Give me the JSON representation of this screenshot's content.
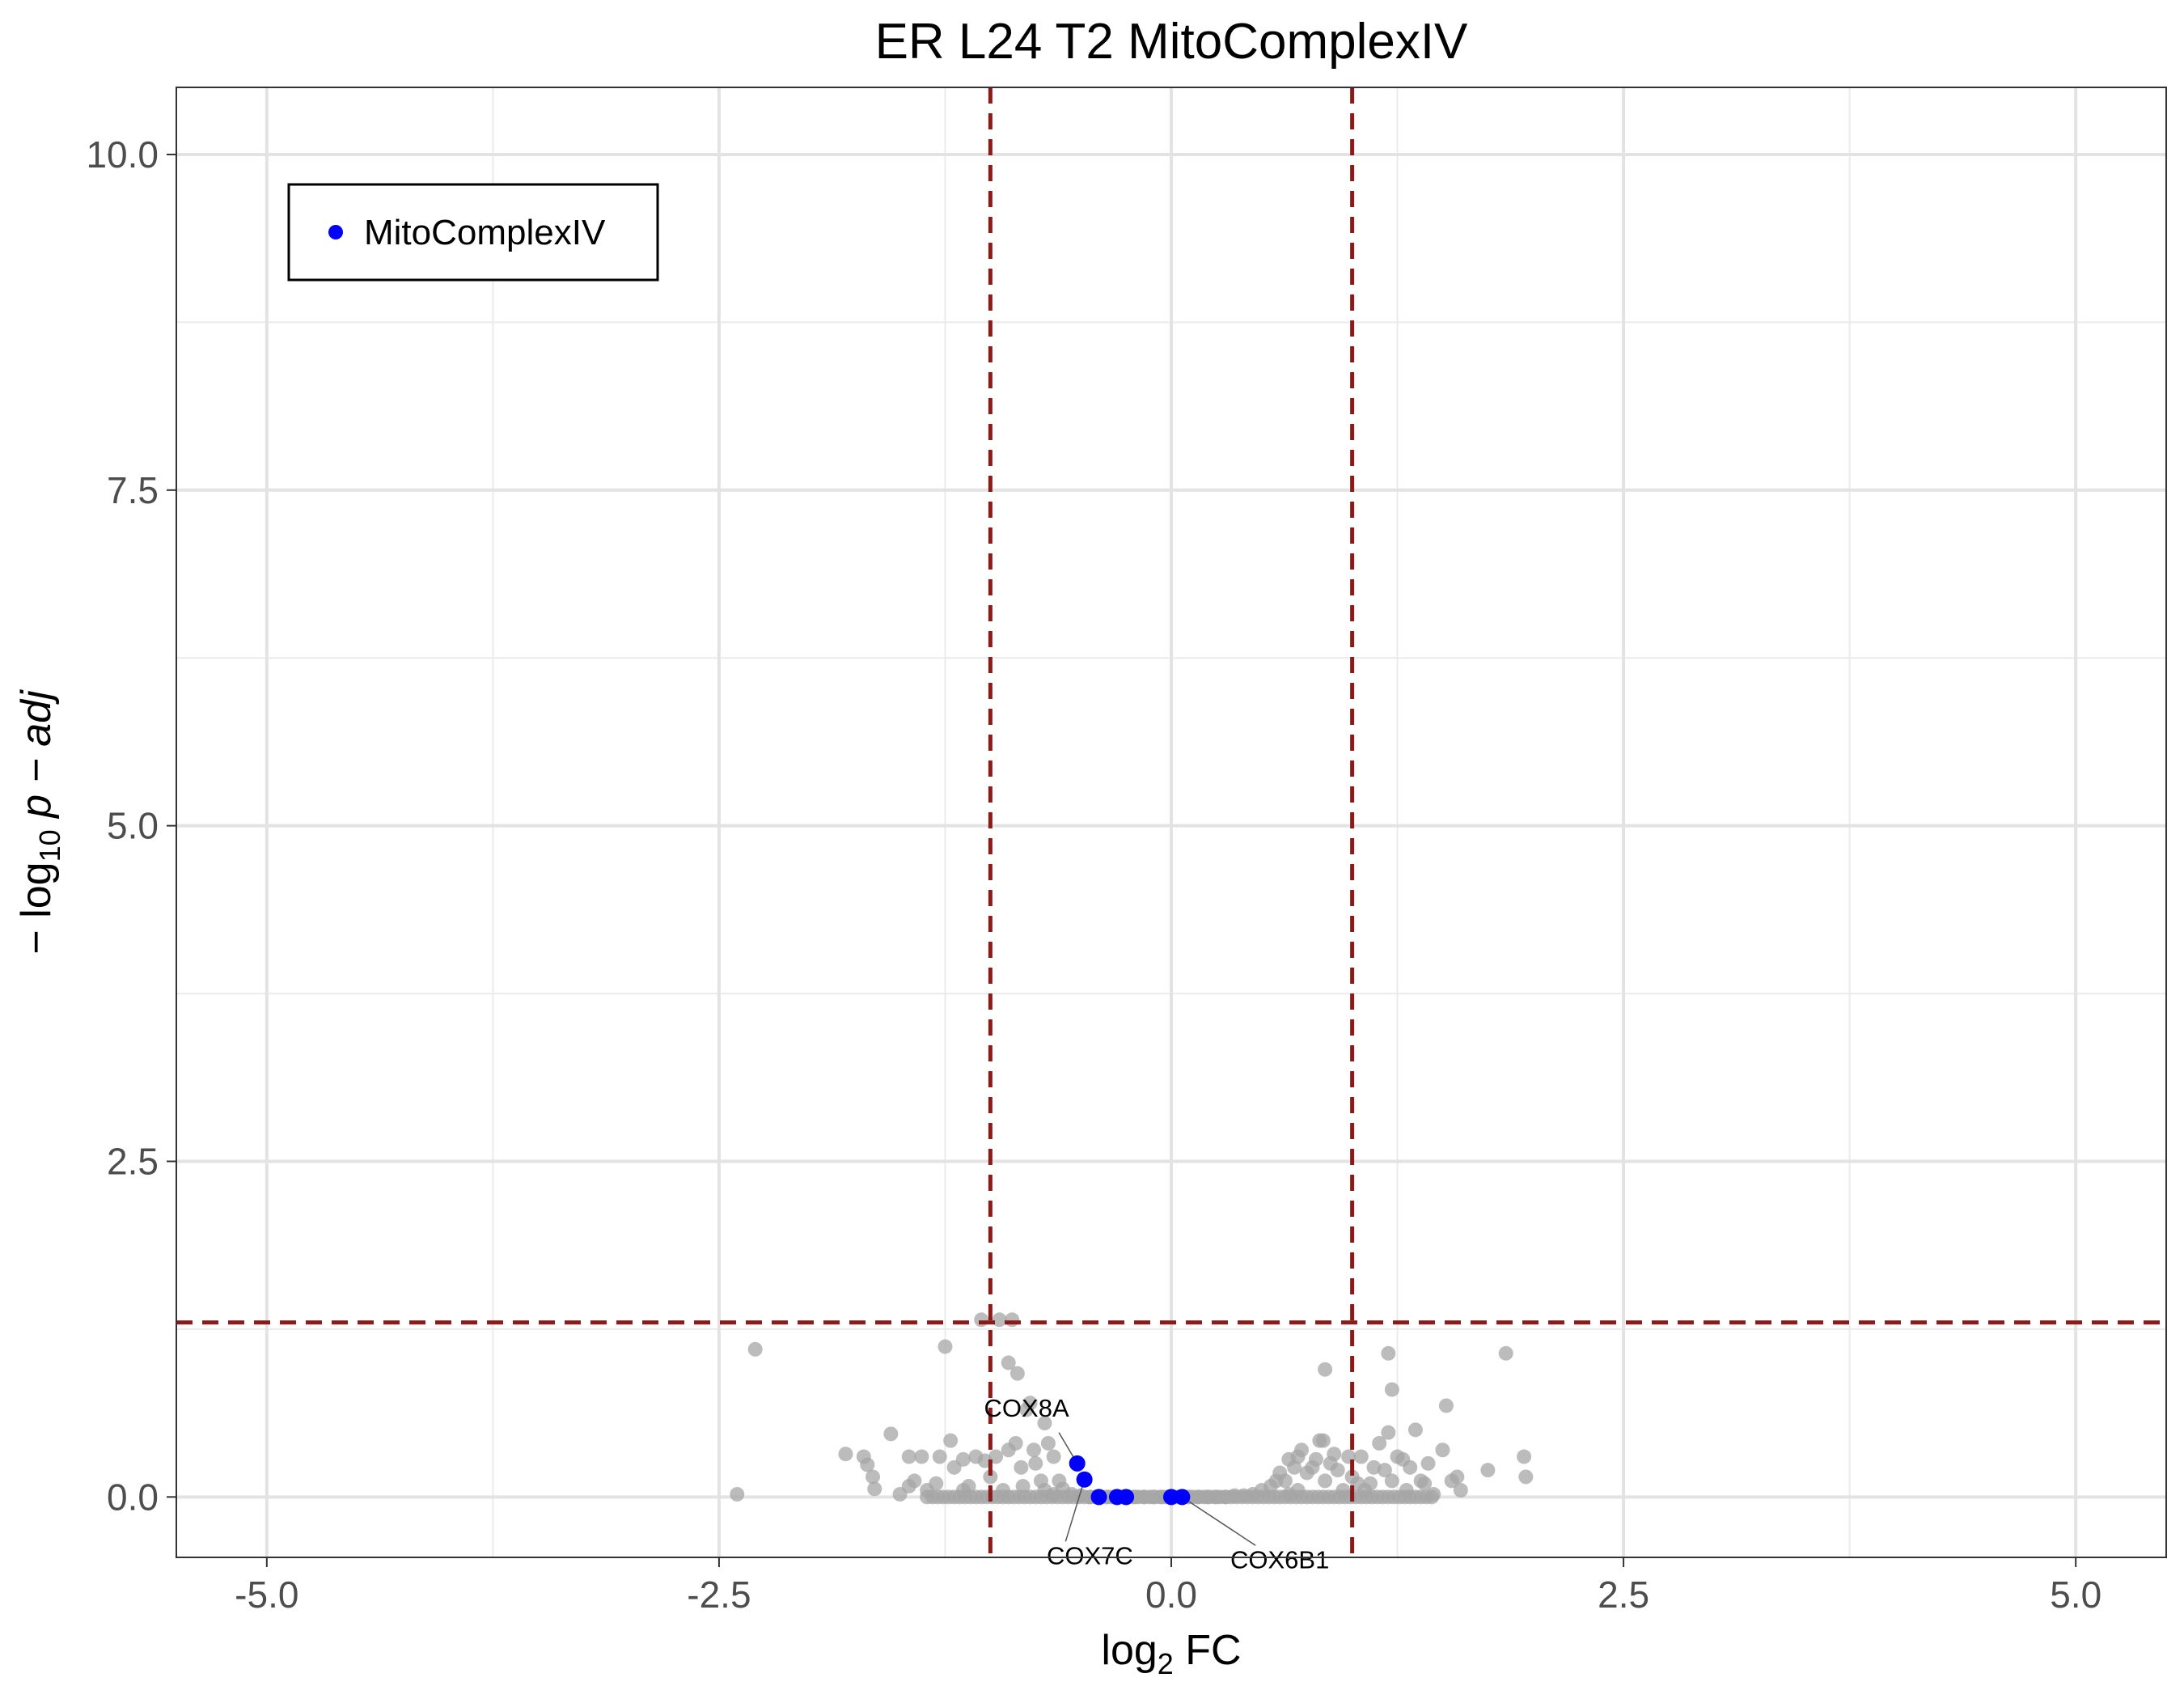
{
  "chart_data": {
    "type": "scatter",
    "title": "ER L24 T2 MitoComplexIV",
    "xlabel": {
      "main": "log",
      "sub": "2",
      "suffix": " FC"
    },
    "ylabel": {
      "prefix": "− log",
      "sub": "10",
      "suffix": " p − adj"
    },
    "xlim": [
      -5.5,
      5.5
    ],
    "ylim": [
      -0.45,
      10.5
    ],
    "x_ticks": [
      -5.0,
      -2.5,
      0.0,
      2.5,
      5.0
    ],
    "x_tick_labels": [
      "-5.0",
      "-2.5",
      "0.0",
      "2.5",
      "5.0"
    ],
    "y_ticks": [
      0.0,
      2.5,
      5.0,
      7.5,
      10.0
    ],
    "y_tick_labels": [
      "0.0",
      "2.5",
      "5.0",
      "7.5",
      "10.0"
    ],
    "grid": true,
    "legend": {
      "position": "top-left",
      "entries": [
        {
          "label": "MitoComplexIV",
          "color": "#0000ff"
        }
      ]
    },
    "thresholds": {
      "vertical": [
        -1.0,
        1.0
      ],
      "horizontal": 1.3,
      "color": "#8b1a1a"
    },
    "colors": {
      "background_points": "#a6a6a6",
      "highlight_points": "#0000ff"
    },
    "series": [
      {
        "name": "background",
        "points": [
          [
            -2.4,
            0.02
          ],
          [
            -2.3,
            1.1
          ],
          [
            -1.8,
            0.32
          ],
          [
            -1.7,
            0.3
          ],
          [
            -1.68,
            0.24
          ],
          [
            -1.65,
            0.15
          ],
          [
            -1.64,
            0.06
          ],
          [
            -1.55,
            0.47
          ],
          [
            -1.5,
            0.02
          ],
          [
            -1.45,
            0.3
          ],
          [
            -1.42,
            0.12
          ],
          [
            -1.38,
            0.3
          ],
          [
            -1.35,
            0.05
          ],
          [
            -1.3,
            0.1
          ],
          [
            -1.28,
            0.3
          ],
          [
            -1.25,
            1.12
          ],
          [
            -1.22,
            0.42
          ],
          [
            -1.2,
            0.22
          ],
          [
            -1.15,
            0.28
          ],
          [
            -1.12,
            0.08
          ],
          [
            -1.08,
            0.3
          ],
          [
            -1.05,
            1.32
          ],
          [
            -1.03,
            0.27
          ],
          [
            -1.0,
            0.15
          ],
          [
            -0.97,
            0.3
          ],
          [
            -0.95,
            1.32
          ],
          [
            -0.93,
            0.05
          ],
          [
            -0.9,
            0.35
          ],
          [
            -0.88,
            1.32
          ],
          [
            -0.86,
            0.4
          ],
          [
            -0.83,
            0.22
          ],
          [
            -0.82,
            0.08
          ],
          [
            -0.8,
            0.65
          ],
          [
            -0.78,
            0.7
          ],
          [
            -0.76,
            0.35
          ],
          [
            -0.75,
            0.25
          ],
          [
            -0.72,
            0.12
          ],
          [
            -0.7,
            0.55
          ],
          [
            -0.68,
            0.4
          ],
          [
            -0.65,
            0.3
          ],
          [
            -0.62,
            0.12
          ],
          [
            -0.6,
            0.06
          ],
          [
            -0.85,
            0.92
          ],
          [
            -0.9,
            1.0
          ],
          [
            -1.15,
            0.05
          ],
          [
            -1.45,
            0.08
          ],
          [
            -0.55,
            0.02
          ],
          [
            -0.5,
            0.01
          ],
          [
            -0.45,
            0.0
          ],
          [
            -0.4,
            0.0
          ],
          [
            -0.35,
            0.0
          ],
          [
            -0.3,
            0.0
          ],
          [
            -0.25,
            0.0
          ],
          [
            -0.2,
            0.0
          ],
          [
            -0.15,
            0.0
          ],
          [
            -0.1,
            0.0
          ],
          [
            -0.05,
            0.0
          ],
          [
            0.05,
            0.0
          ],
          [
            0.1,
            0.0
          ],
          [
            0.15,
            0.0
          ],
          [
            0.2,
            0.0
          ],
          [
            0.25,
            0.0
          ],
          [
            0.3,
            0.0
          ],
          [
            0.35,
            0.01
          ],
          [
            0.4,
            0.01
          ],
          [
            0.45,
            0.02
          ],
          [
            0.5,
            0.05
          ],
          [
            0.55,
            0.08
          ],
          [
            0.58,
            0.12
          ],
          [
            0.6,
            0.18
          ],
          [
            0.63,
            0.12
          ],
          [
            0.65,
            0.28
          ],
          [
            0.68,
            0.22
          ],
          [
            0.7,
            0.3
          ],
          [
            0.72,
            0.35
          ],
          [
            0.75,
            0.18
          ],
          [
            0.78,
            0.22
          ],
          [
            0.8,
            0.28
          ],
          [
            0.82,
            0.42
          ],
          [
            0.84,
            0.42
          ],
          [
            0.85,
            0.12
          ],
          [
            0.88,
            0.25
          ],
          [
            0.9,
            0.32
          ],
          [
            0.92,
            0.2
          ],
          [
            0.95,
            0.05
          ],
          [
            0.98,
            0.3
          ],
          [
            1.0,
            0.15
          ],
          [
            1.03,
            0.1
          ],
          [
            1.05,
            0.3
          ],
          [
            1.07,
            0.05
          ],
          [
            1.1,
            0.1
          ],
          [
            1.12,
            0.22
          ],
          [
            1.15,
            0.4
          ],
          [
            1.18,
            0.2
          ],
          [
            1.2,
            0.48
          ],
          [
            1.22,
            0.12
          ],
          [
            1.25,
            0.3
          ],
          [
            1.28,
            0.28
          ],
          [
            1.3,
            0.05
          ],
          [
            1.32,
            0.22
          ],
          [
            1.35,
            0.5
          ],
          [
            1.38,
            0.12
          ],
          [
            1.4,
            0.1
          ],
          [
            1.42,
            0.25
          ],
          [
            1.45,
            0.02
          ],
          [
            1.5,
            0.35
          ],
          [
            1.52,
            0.68
          ],
          [
            1.55,
            0.12
          ],
          [
            1.58,
            0.15
          ],
          [
            1.6,
            0.05
          ],
          [
            1.75,
            0.2
          ],
          [
            1.85,
            1.07
          ],
          [
            1.95,
            0.3
          ],
          [
            1.96,
            0.15
          ],
          [
            0.85,
            0.95
          ],
          [
            1.2,
            1.07
          ],
          [
            1.22,
            0.8
          ],
          [
            0.7,
            0.05
          ],
          [
            0.65,
            0.02
          ],
          [
            -0.65,
            0.02
          ],
          [
            -0.7,
            0.05
          ]
        ]
      },
      {
        "name": "MitoComplexIV",
        "points": [
          [
            -0.52,
            0.25
          ],
          [
            -0.48,
            0.13
          ],
          [
            -0.4,
            0.0
          ],
          [
            -0.3,
            0.0
          ],
          [
            -0.25,
            0.0
          ],
          [
            0.0,
            0.0
          ],
          [
            0.06,
            0.0
          ]
        ]
      }
    ],
    "annotations": [
      {
        "text": "COX8A",
        "point": [
          -0.52,
          0.25
        ],
        "label_at": [
          -0.8,
          0.6
        ],
        "anchor": "middle"
      },
      {
        "text": "COX7C",
        "point": [
          -0.48,
          0.13
        ],
        "label_at": [
          -0.45,
          -0.5
        ],
        "anchor": "middle"
      },
      {
        "text": "COX6B1",
        "point": [
          0.06,
          0.0
        ],
        "label_at": [
          0.6,
          -0.53
        ],
        "anchor": "middle"
      }
    ]
  }
}
